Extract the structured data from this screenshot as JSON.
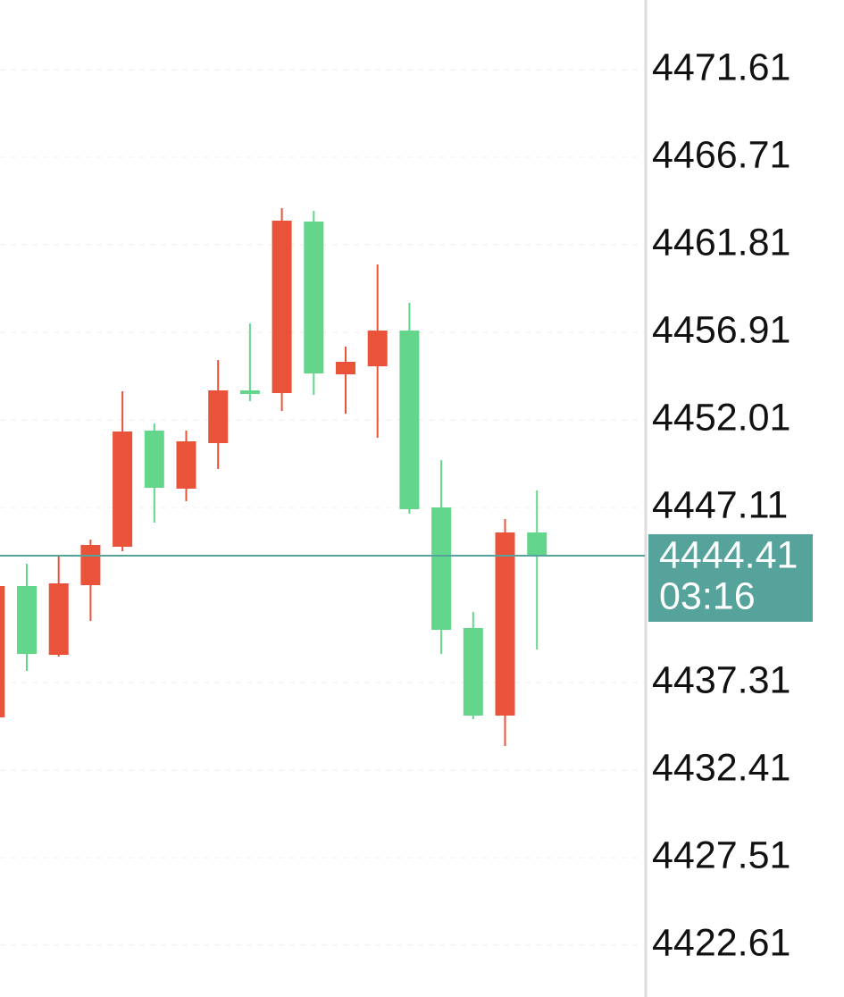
{
  "chart_data": {
    "type": "candlestick",
    "open": [
      4435.36,
      4442.71,
      4438.86,
      4442.76,
      4444.91,
      4451.41,
      4448.16,
      4450.71,
      4453.66,
      4453.51,
      4463.11,
      4454.56,
      4455.01,
      4457.01,
      4447.11,
      4440.36,
      4435.46,
      4445.71
    ],
    "high": [
      4442.71,
      4443.96,
      4444.41,
      4445.31,
      4453.61,
      4451.81,
      4451.41,
      4455.36,
      4457.41,
      4463.86,
      4463.71,
      4456.11,
      4460.71,
      4458.56,
      4449.76,
      4441.26,
      4446.46,
      4448.06
    ],
    "low": [
      4435.36,
      4437.96,
      4438.76,
      4440.76,
      4444.66,
      4446.26,
      4447.46,
      4449.26,
      4453.06,
      4452.51,
      4453.41,
      4452.36,
      4451.01,
      4446.76,
      4438.91,
      4435.26,
      4433.76,
      4439.16
    ],
    "close": [
      4442.71,
      4438.91,
      4442.86,
      4445.01,
      4451.36,
      4448.21,
      4450.81,
      4453.66,
      4453.46,
      4463.16,
      4454.61,
      4455.26,
      4457.01,
      4447.01,
      4440.26,
      4435.46,
      4445.71,
      4444.41
    ],
    "up_color": "#e8533a",
    "down_color": "#63d68b",
    "ylim": [
      4419.71,
      4475.51
    ],
    "yticks": [
      4471.61,
      4466.71,
      4461.81,
      4456.91,
      4452.01,
      4447.11,
      4437.31,
      4432.41,
      4427.51,
      4422.61
    ],
    "grid": true,
    "last_price": 4444.41,
    "last_price_color": "#55a39a",
    "countdown": "03:16"
  }
}
